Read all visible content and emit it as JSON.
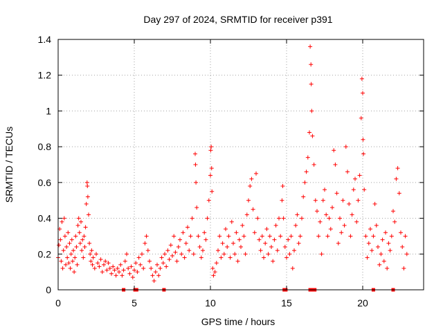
{
  "chart_data": {
    "type": "scatter",
    "title": "Day 297 of 2024, SRMTID for receiver p391",
    "xlabel": "GPS time / hours",
    "ylabel": "SRMTID / TECUs",
    "xlim": [
      0,
      24
    ],
    "ylim": [
      0,
      1.4
    ],
    "xticks": [
      0,
      5,
      10,
      15,
      20
    ],
    "yticks": [
      0,
      0.2,
      0.4,
      0.6,
      0.8,
      1,
      1.2,
      1.4
    ],
    "xtick_labels": [
      "0",
      "5",
      "10",
      "15",
      "20"
    ],
    "ytick_labels": [
      "0",
      "0.2",
      "0.4",
      "0.6",
      "0.8",
      "1",
      "1.2",
      "1.4"
    ],
    "grid": true,
    "marker": "+",
    "color": "#ff0000",
    "series": [
      {
        "name": "SRMTID",
        "points": [
          [
            0.0,
            0.18
          ],
          [
            0.05,
            0.25
          ],
          [
            0.1,
            0.34
          ],
          [
            0.15,
            0.28
          ],
          [
            0.2,
            0.16
          ],
          [
            0.25,
            0.38
          ],
          [
            0.3,
            0.12
          ],
          [
            0.35,
            0.22
          ],
          [
            0.4,
            0.4
          ],
          [
            0.45,
            0.3
          ],
          [
            0.5,
            0.14
          ],
          [
            0.55,
            0.24
          ],
          [
            0.6,
            0.18
          ],
          [
            0.65,
            0.32
          ],
          [
            0.7,
            0.15
          ],
          [
            0.75,
            0.26
          ],
          [
            0.8,
            0.12
          ],
          [
            0.85,
            0.2
          ],
          [
            0.9,
            0.28
          ],
          [
            0.95,
            0.16
          ],
          [
            1.0,
            0.22
          ],
          [
            1.05,
            0.1
          ],
          [
            1.1,
            0.18
          ],
          [
            1.15,
            0.3
          ],
          [
            1.2,
            0.24
          ],
          [
            1.25,
            0.14
          ],
          [
            1.3,
            0.36
          ],
          [
            1.35,
            0.4
          ],
          [
            1.4,
            0.32
          ],
          [
            1.45,
            0.26
          ],
          [
            1.5,
            0.38
          ],
          [
            1.55,
            0.22
          ],
          [
            1.6,
            0.28
          ],
          [
            1.65,
            0.18
          ],
          [
            1.7,
            0.3
          ],
          [
            1.75,
            0.24
          ],
          [
            1.8,
            0.35
          ],
          [
            1.85,
            0.48
          ],
          [
            1.9,
            0.6
          ],
          [
            1.92,
            0.58
          ],
          [
            1.95,
            0.52
          ],
          [
            2.0,
            0.42
          ],
          [
            2.05,
            0.26
          ],
          [
            2.1,
            0.2
          ],
          [
            2.15,
            0.16
          ],
          [
            2.2,
            0.22
          ],
          [
            2.25,
            0.14
          ],
          [
            2.3,
            0.18
          ],
          [
            2.4,
            0.12
          ],
          [
            2.5,
            0.2
          ],
          [
            2.6,
            0.15
          ],
          [
            2.7,
            0.13
          ],
          [
            2.8,
            0.17
          ],
          [
            2.9,
            0.1
          ],
          [
            3.0,
            0.14
          ],
          [
            3.1,
            0.16
          ],
          [
            3.2,
            0.11
          ],
          [
            3.3,
            0.15
          ],
          [
            3.4,
            0.12
          ],
          [
            3.5,
            0.09
          ],
          [
            3.6,
            0.13
          ],
          [
            3.7,
            0.11
          ],
          [
            3.8,
            0.08
          ],
          [
            3.9,
            0.12
          ],
          [
            4.0,
            0.1
          ],
          [
            4.1,
            0.14
          ],
          [
            4.2,
            0.08
          ],
          [
            4.3,
            0.11
          ],
          [
            4.4,
            0.16
          ],
          [
            4.5,
            0.2
          ],
          [
            4.6,
            0.12
          ],
          [
            4.7,
            0.09
          ],
          [
            4.8,
            0.13
          ],
          [
            4.9,
            0.07
          ],
          [
            5.0,
            0.11
          ],
          [
            5.1,
            0.15
          ],
          [
            5.2,
            0.1
          ],
          [
            5.3,
            0.18
          ],
          [
            5.4,
            0.14
          ],
          [
            5.5,
            0.2
          ],
          [
            5.6,
            0.12
          ],
          [
            5.7,
            0.26
          ],
          [
            5.8,
            0.3
          ],
          [
            5.9,
            0.22
          ],
          [
            6.0,
            0.16
          ],
          [
            6.1,
            0.12
          ],
          [
            6.2,
            0.08
          ],
          [
            6.3,
            0.05
          ],
          [
            6.4,
            0.1
          ],
          [
            6.5,
            0.14
          ],
          [
            6.6,
            0.08
          ],
          [
            6.7,
            0.12
          ],
          [
            6.8,
            0.18
          ],
          [
            6.9,
            0.15
          ],
          [
            7.0,
            0.2
          ],
          [
            7.1,
            0.13
          ],
          [
            7.2,
            0.22
          ],
          [
            7.3,
            0.17
          ],
          [
            7.4,
            0.25
          ],
          [
            7.5,
            0.19
          ],
          [
            7.6,
            0.3
          ],
          [
            7.7,
            0.21
          ],
          [
            7.8,
            0.16
          ],
          [
            7.9,
            0.24
          ],
          [
            8.0,
            0.28
          ],
          [
            8.1,
            0.2
          ],
          [
            8.2,
            0.32
          ],
          [
            8.3,
            0.18
          ],
          [
            8.4,
            0.26
          ],
          [
            8.5,
            0.35
          ],
          [
            8.6,
            0.22
          ],
          [
            8.7,
            0.3
          ],
          [
            8.8,
            0.4
          ],
          [
            8.9,
            0.2
          ],
          [
            9.0,
            0.76
          ],
          [
            9.02,
            0.7
          ],
          [
            9.05,
            0.6
          ],
          [
            9.1,
            0.46
          ],
          [
            9.2,
            0.3
          ],
          [
            9.3,
            0.24
          ],
          [
            9.4,
            0.18
          ],
          [
            9.5,
            0.22
          ],
          [
            9.6,
            0.32
          ],
          [
            9.7,
            0.28
          ],
          [
            9.8,
            0.4
          ],
          [
            9.9,
            0.5
          ],
          [
            10.0,
            0.64
          ],
          [
            10.02,
            0.78
          ],
          [
            10.05,
            0.8
          ],
          [
            10.08,
            0.68
          ],
          [
            10.1,
            0.55
          ],
          [
            10.15,
            0.12
          ],
          [
            10.2,
            0.08
          ],
          [
            10.3,
            0.1
          ],
          [
            10.4,
            0.15
          ],
          [
            10.5,
            0.22
          ],
          [
            10.6,
            0.3
          ],
          [
            10.7,
            0.18
          ],
          [
            10.8,
            0.26
          ],
          [
            10.9,
            0.2
          ],
          [
            11.0,
            0.34
          ],
          [
            11.1,
            0.24
          ],
          [
            11.2,
            0.3
          ],
          [
            11.3,
            0.18
          ],
          [
            11.4,
            0.38
          ],
          [
            11.5,
            0.26
          ],
          [
            11.6,
            0.2
          ],
          [
            11.7,
            0.32
          ],
          [
            11.8,
            0.16
          ],
          [
            11.9,
            0.28
          ],
          [
            12.0,
            0.24
          ],
          [
            12.1,
            0.36
          ],
          [
            12.2,
            0.3
          ],
          [
            12.3,
            0.2
          ],
          [
            12.4,
            0.42
          ],
          [
            12.5,
            0.5
          ],
          [
            12.6,
            0.58
          ],
          [
            12.7,
            0.62
          ],
          [
            12.8,
            0.45
          ],
          [
            12.9,
            0.32
          ],
          [
            13.0,
            0.65
          ],
          [
            13.1,
            0.4
          ],
          [
            13.2,
            0.28
          ],
          [
            13.3,
            0.22
          ],
          [
            13.4,
            0.3
          ],
          [
            13.5,
            0.18
          ],
          [
            13.6,
            0.26
          ],
          [
            13.7,
            0.34
          ],
          [
            13.8,
            0.2
          ],
          [
            13.9,
            0.3
          ],
          [
            14.0,
            0.24
          ],
          [
            14.1,
            0.16
          ],
          [
            14.2,
            0.28
          ],
          [
            14.3,
            0.36
          ],
          [
            14.4,
            0.22
          ],
          [
            14.5,
            0.4
          ],
          [
            14.6,
            0.3
          ],
          [
            14.7,
            0.5
          ],
          [
            14.75,
            0.58
          ],
          [
            14.8,
            0.4
          ],
          [
            14.9,
            0.24
          ],
          [
            15.0,
            0.18
          ],
          [
            15.1,
            0.28
          ],
          [
            15.2,
            0.2
          ],
          [
            15.3,
            0.3
          ],
          [
            15.4,
            0.12
          ],
          [
            15.5,
            0.22
          ],
          [
            15.6,
            0.36
          ],
          [
            15.7,
            0.42
          ],
          [
            15.8,
            0.26
          ],
          [
            15.9,
            0.3
          ],
          [
            16.0,
            0.4
          ],
          [
            16.1,
            0.52
          ],
          [
            16.2,
            0.6
          ],
          [
            16.3,
            0.66
          ],
          [
            16.4,
            0.74
          ],
          [
            16.5,
            0.88
          ],
          [
            16.55,
            1.36
          ],
          [
            16.6,
            1.26
          ],
          [
            16.62,
            1.15
          ],
          [
            16.65,
            1.0
          ],
          [
            16.7,
            0.86
          ],
          [
            16.8,
            0.7
          ],
          [
            16.9,
            0.5
          ],
          [
            17.0,
            0.44
          ],
          [
            17.1,
            0.3
          ],
          [
            17.2,
            0.38
          ],
          [
            17.3,
            0.2
          ],
          [
            17.4,
            0.5
          ],
          [
            17.5,
            0.56
          ],
          [
            17.6,
            0.42
          ],
          [
            17.7,
            0.3
          ],
          [
            17.8,
            0.4
          ],
          [
            17.9,
            0.34
          ],
          [
            18.0,
            0.46
          ],
          [
            18.1,
            0.78
          ],
          [
            18.2,
            0.7
          ],
          [
            18.3,
            0.54
          ],
          [
            18.4,
            0.26
          ],
          [
            18.5,
            0.4
          ],
          [
            18.6,
            0.32
          ],
          [
            18.7,
            0.5
          ],
          [
            18.8,
            0.36
          ],
          [
            18.9,
            0.8
          ],
          [
            19.0,
            0.66
          ],
          [
            19.1,
            0.48
          ],
          [
            19.2,
            0.3
          ],
          [
            19.3,
            0.42
          ],
          [
            19.4,
            0.56
          ],
          [
            19.5,
            0.62
          ],
          [
            19.6,
            0.38
          ],
          [
            19.7,
            0.5
          ],
          [
            19.8,
            0.64
          ],
          [
            19.9,
            0.96
          ],
          [
            19.95,
            1.18
          ],
          [
            20.0,
            1.1
          ],
          [
            20.02,
            0.84
          ],
          [
            20.05,
            0.76
          ],
          [
            20.1,
            0.56
          ],
          [
            20.2,
            0.3
          ],
          [
            20.3,
            0.18
          ],
          [
            20.4,
            0.26
          ],
          [
            20.5,
            0.34
          ],
          [
            20.6,
            0.22
          ],
          [
            20.7,
            0.3
          ],
          [
            20.8,
            0.48
          ],
          [
            20.9,
            0.36
          ],
          [
            21.0,
            0.24
          ],
          [
            21.1,
            0.14
          ],
          [
            21.2,
            0.2
          ],
          [
            21.3,
            0.28
          ],
          [
            21.4,
            0.16
          ],
          [
            21.5,
            0.32
          ],
          [
            21.6,
            0.12
          ],
          [
            21.7,
            0.26
          ],
          [
            21.8,
            0.22
          ],
          [
            21.9,
            0.3
          ],
          [
            22.0,
            0.44
          ],
          [
            22.1,
            0.38
          ],
          [
            22.2,
            0.62
          ],
          [
            22.3,
            0.68
          ],
          [
            22.4,
            0.54
          ],
          [
            22.5,
            0.32
          ],
          [
            22.6,
            0.24
          ],
          [
            22.7,
            0.12
          ],
          [
            22.8,
            0.3
          ],
          [
            22.9,
            0.2
          ]
        ]
      }
    ],
    "gap_markers_x": [
      4.3,
      5.05,
      5.15,
      6.95,
      14.85,
      14.95,
      16.55,
      16.7,
      16.85,
      20.7,
      22.0
    ]
  }
}
